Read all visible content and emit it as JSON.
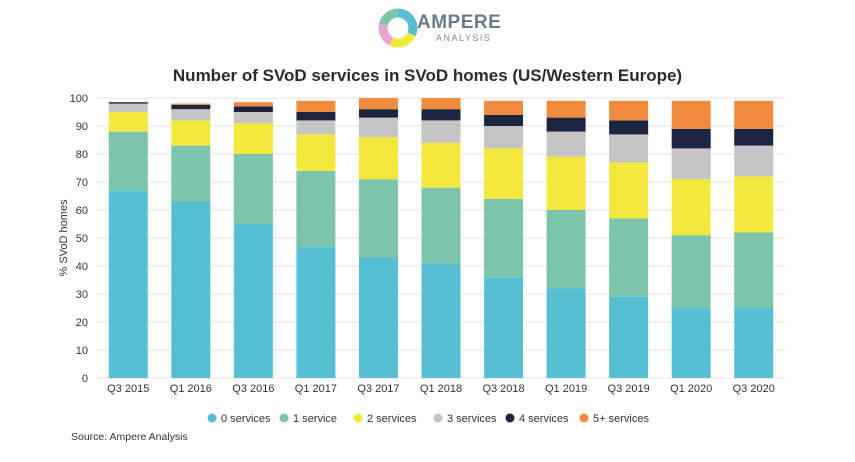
{
  "brand": {
    "name": "AMPERE",
    "subtitle": "ANALYSIS"
  },
  "source_text": "Source: Ampere Analysis",
  "chart_data": {
    "type": "bar",
    "stacked": true,
    "title": "Number of SVoD services in SVoD homes (US/Western Europe)",
    "xlabel": "",
    "ylabel": "% SVoD homes",
    "ylim": [
      0,
      100
    ],
    "yticks": [
      0,
      10,
      20,
      30,
      40,
      50,
      60,
      70,
      80,
      90,
      100
    ],
    "grid": true,
    "legend_position": "bottom",
    "categories": [
      "Q3 2015",
      "Q1 2016",
      "Q3 2016",
      "Q1 2017",
      "Q3 2017",
      "Q1 2018",
      "Q3 2018",
      "Q1 2019",
      "Q3 2019",
      "Q1 2020",
      "Q3 2020"
    ],
    "series": [
      {
        "name": "0 services",
        "color": "#56bfd3",
        "values": [
          67,
          63,
          55,
          47,
          43,
          41,
          36,
          32,
          29,
          25,
          25
        ]
      },
      {
        "name": "1 service",
        "color": "#7cc4ac",
        "values": [
          21,
          20,
          25,
          27,
          28,
          27,
          28,
          28,
          28,
          26,
          27
        ]
      },
      {
        "name": "2 services",
        "color": "#f3e93c",
        "values": [
          7,
          9,
          11,
          13,
          15,
          16,
          18,
          19,
          20,
          20,
          20
        ]
      },
      {
        "name": "3 services",
        "color": "#c5c5c5",
        "values": [
          3,
          4,
          4,
          5,
          7,
          8,
          8,
          9,
          10,
          11,
          11
        ]
      },
      {
        "name": "4 services",
        "color": "#1c2540",
        "values": [
          0.5,
          1.5,
          2,
          3,
          3,
          4,
          4,
          5,
          5,
          7,
          6
        ]
      },
      {
        "name": "5+ services",
        "color": "#f08a3c",
        "values": [
          0,
          0.5,
          1.5,
          4,
          4,
          4,
          5,
          6,
          7,
          10,
          10
        ]
      }
    ]
  }
}
